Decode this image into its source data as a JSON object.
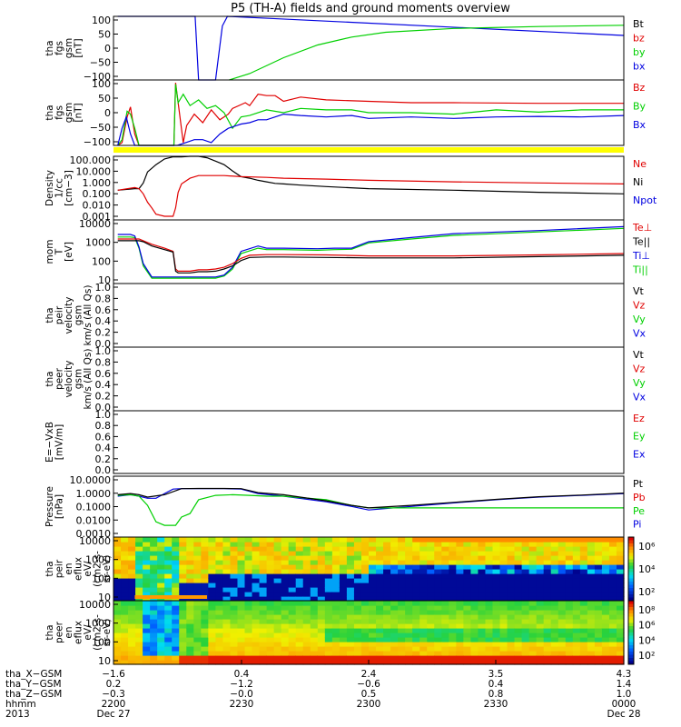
{
  "title": "P5 (TH-A) fields and ground moments overview",
  "colors": {
    "black": "#000000",
    "red": "#e00000",
    "green": "#00d000",
    "blue": "#0000e0",
    "yellow": "#ffff00"
  },
  "chart_data": [
    {
      "type": "line",
      "ylabel": [
        "tha",
        "fgs",
        "gsm",
        "[nT]"
      ],
      "ylim": [
        -100,
        100
      ],
      "yticks": [
        "100",
        "50",
        "0",
        "−50",
        "−100"
      ],
      "legend": [
        {
          "name": "Bt",
          "color": "black"
        },
        {
          "name": "bz",
          "color": "red"
        },
        {
          "name": "by",
          "color": "green"
        },
        {
          "name": "bx",
          "color": "blue"
        }
      ],
      "series": [
        {
          "name": "bx",
          "color": "blue",
          "x": [
            0.5,
            4.2,
            7.0,
            7.4,
            9.2,
            9.6,
            10.0,
            11.0,
            12.0,
            12.8,
            13.4,
            60
          ],
          "y": [
            100,
            100,
            100,
            100,
            100,
            100,
            -100,
            -100,
            -100,
            70,
            100,
            40
          ]
        },
        {
          "name": "by",
          "color": "green",
          "x": [
            13.6,
            16,
            20,
            24,
            28,
            32,
            40,
            50,
            60
          ],
          "y": [
            -100,
            -80,
            -30,
            10,
            35,
            50,
            62,
            68,
            72
          ]
        }
      ]
    },
    {
      "type": "line",
      "ylabel": [
        "tha",
        "fgs",
        "gsm",
        "[nT]"
      ],
      "ylim": [
        -120,
        110
      ],
      "yticks": [
        "100",
        "50",
        "0",
        "−50",
        "−100"
      ],
      "legend": [
        {
          "name": "Bz",
          "color": "red"
        },
        {
          "name": "By",
          "color": "green"
        },
        {
          "name": "Bx",
          "color": "blue"
        }
      ],
      "series": [
        {
          "name": "Bz",
          "color": "red",
          "x": [
            0.5,
            1.0,
            1.6,
            2.0,
            2.5,
            3.0,
            7.1,
            7.3,
            8.2,
            8.6,
            9.5,
            10.5,
            11.5,
            12.5,
            13.5,
            14.0,
            15.5,
            16,
            17,
            18,
            19,
            20,
            22,
            25,
            30,
            35,
            40,
            50,
            60
          ],
          "y": [
            -120,
            -110,
            -20,
            15,
            -80,
            -120,
            -120,
            100,
            -110,
            -50,
            -10,
            -40,
            5,
            -30,
            -10,
            10,
            30,
            20,
            60,
            55,
            55,
            35,
            50,
            40,
            35,
            30,
            30,
            28,
            28
          ]
        },
        {
          "name": "By",
          "color": "green",
          "x": [
            0.5,
            1.0,
            1.6,
            2.0,
            2.5,
            3.0,
            7.1,
            7.3,
            7.6,
            8.2,
            9.0,
            10.0,
            11.0,
            12.0,
            13.0,
            14.0,
            15,
            16,
            18,
            20,
            22,
            25,
            28,
            30,
            35,
            40,
            45,
            50,
            55,
            60
          ],
          "y": [
            -120,
            -100,
            0,
            -10,
            -60,
            -120,
            -120,
            95,
            30,
            60,
            20,
            40,
            10,
            20,
            -5,
            -60,
            -20,
            -15,
            5,
            -5,
            10,
            5,
            5,
            -5,
            -5,
            -10,
            5,
            -3,
            5,
            5
          ]
        },
        {
          "name": "Bx",
          "color": "blue",
          "x": [
            0.5,
            1.0,
            1.5,
            2.0,
            2.5,
            7.5,
            8.5,
            9.5,
            10.5,
            11.5,
            12.5,
            13.5,
            14.5,
            15,
            16,
            17,
            18,
            19,
            20,
            22,
            25,
            28,
            30,
            35,
            40,
            45,
            50,
            55,
            60
          ],
          "y": [
            -120,
            -60,
            -20,
            -80,
            -120,
            -120,
            -110,
            -100,
            -100,
            -110,
            -80,
            -60,
            -50,
            -45,
            -40,
            -30,
            -30,
            -20,
            -10,
            -15,
            -20,
            -15,
            -25,
            -20,
            -25,
            -20,
            -18,
            -20,
            -15
          ]
        }
      ],
      "flagbar": {
        "color": "yellow"
      }
    },
    {
      "type": "line",
      "ylabel": [
        "Density",
        "1/cc",
        "[cm−3]"
      ],
      "ylim": [
        0.001,
        200
      ],
      "log": true,
      "yticks": [
        "100.000",
        "10.000",
        "1.000",
        "0.100",
        "0.010",
        "0.001"
      ],
      "legend": [
        {
          "name": "Ne",
          "color": "red"
        },
        {
          "name": "Ni",
          "color": "black"
        },
        {
          "name": "Npot",
          "color": "blue"
        }
      ],
      "series": [
        {
          "name": "Ni",
          "color": "black",
          "x": [
            0.5,
            2.5,
            3.0,
            3.5,
            4,
            5,
            6,
            7,
            8,
            9,
            10,
            11,
            12,
            13,
            14,
            15,
            16,
            17,
            18,
            19,
            20,
            22,
            25,
            30,
            40,
            50,
            60
          ],
          "y": [
            0.3,
            0.4,
            0.4,
            1.2,
            10,
            40,
            120,
            180,
            180,
            200,
            200,
            150,
            80,
            40,
            12,
            4,
            3,
            2,
            1.5,
            1.1,
            1.0,
            0.8,
            0.6,
            0.4,
            0.3,
            0.2,
            0.15
          ]
        },
        {
          "name": "Ne",
          "color": "red",
          "x": [
            0.5,
            2.5,
            3.0,
            3.5,
            4,
            4.5,
            5,
            6,
            7,
            7.3,
            7.6,
            8,
            9,
            10,
            11,
            12,
            13,
            15,
            18,
            20,
            25,
            30,
            40,
            50,
            60
          ],
          "y": [
            0.3,
            0.5,
            0.4,
            0.15,
            0.03,
            0.01,
            0.003,
            0.002,
            0.002,
            0.01,
            0.2,
            1.0,
            3,
            5,
            5,
            5,
            5,
            4,
            3.5,
            3,
            2.5,
            2,
            1.5,
            1.2,
            1.0
          ]
        }
      ]
    },
    {
      "type": "line",
      "ylabel": [
        "mom",
        "T",
        "[eV]"
      ],
      "ylim": [
        3,
        12000
      ],
      "log": true,
      "yticks": [
        "10000",
        "1000",
        "100",
        "10"
      ],
      "legend": [
        {
          "name": "Te⊥",
          "color": "red"
        },
        {
          "name": "Te||",
          "color": "black"
        },
        {
          "name": "Ti⊥",
          "color": "blue"
        },
        {
          "name": "Ti||",
          "color": "green"
        }
      ],
      "series": [
        {
          "name": "Ti||",
          "color": "green",
          "x": [
            0.5,
            2.0,
            2.5,
            3.0,
            3.5,
            4.5,
            6,
            7,
            8,
            9,
            10,
            11,
            12,
            13,
            14,
            15,
            17,
            18,
            20,
            24,
            26,
            28,
            30,
            35,
            40,
            50,
            60
          ],
          "y": [
            1300,
            1300,
            1200,
            300,
            30,
            6,
            6,
            6,
            6,
            6,
            6,
            6,
            6,
            8,
            20,
            150,
            300,
            250,
            250,
            230,
            250,
            260,
            600,
            1000,
            1600,
            2500,
            4000
          ]
        },
        {
          "name": "Ti⊥",
          "color": "blue",
          "x": [
            0.5,
            2.0,
            2.5,
            3.0,
            3.5,
            4.5,
            6,
            7,
            8,
            9,
            10,
            11,
            12,
            13,
            14,
            15,
            17,
            18,
            20,
            24,
            26,
            28,
            30,
            35,
            40,
            50,
            60
          ],
          "y": [
            1800,
            1800,
            1500,
            350,
            40,
            7,
            7,
            7,
            7,
            7,
            7,
            7,
            7,
            9,
            25,
            200,
            400,
            300,
            300,
            280,
            300,
            300,
            700,
            1200,
            2000,
            3000,
            5000
          ]
        },
        {
          "name": "Te⊥",
          "color": "red",
          "x": [
            0.5,
            3.0,
            3.5,
            4.5,
            6,
            7,
            7.3,
            7.6,
            8,
            9,
            10,
            11,
            12,
            13,
            14,
            15,
            16,
            18,
            20,
            25,
            30,
            40,
            50,
            60
          ],
          "y": [
            1000,
            1000,
            800,
            500,
            300,
            200,
            20,
            15,
            15,
            15,
            18,
            18,
            20,
            25,
            40,
            80,
            120,
            130,
            130,
            125,
            110,
            110,
            125,
            150
          ]
        },
        {
          "name": "Te||",
          "color": "black",
          "x": [
            0.5,
            3.0,
            3.5,
            4.5,
            6,
            7,
            7.3,
            7.6,
            8,
            9,
            10,
            11,
            12,
            13,
            14,
            15,
            16,
            18,
            20,
            25,
            30,
            40,
            50,
            60
          ],
          "y": [
            800,
            800,
            700,
            400,
            250,
            180,
            15,
            12,
            12,
            12,
            14,
            14,
            15,
            20,
            30,
            60,
            90,
            95,
            95,
            90,
            85,
            85,
            100,
            120
          ]
        }
      ]
    },
    {
      "type": "line",
      "ylabel": [
        "tha",
        "peir",
        "velocity",
        "gsm",
        "km/s (All Qs)"
      ],
      "ylim": [
        0,
        1
      ],
      "yticks": [
        "1.0",
        "0.8",
        "0.6",
        "0.4",
        "0.2",
        "0.0"
      ],
      "legend": [
        {
          "name": "Vt",
          "color": "black"
        },
        {
          "name": "Vz",
          "color": "red"
        },
        {
          "name": "Vy",
          "color": "green"
        },
        {
          "name": "Vx",
          "color": "blue"
        }
      ],
      "series": []
    },
    {
      "type": "line",
      "ylabel": [
        "tha",
        "peer",
        "velocity",
        "gsm",
        "km/s (All Qs)"
      ],
      "ylim": [
        0,
        1
      ],
      "yticks": [
        "1.0",
        "0.8",
        "0.6",
        "0.4",
        "0.2",
        "0.0"
      ],
      "legend": [
        {
          "name": "Vt",
          "color": "black"
        },
        {
          "name": "Vz",
          "color": "red"
        },
        {
          "name": "Vy",
          "color": "green"
        },
        {
          "name": "Vx",
          "color": "blue"
        }
      ],
      "series": []
    },
    {
      "type": "line",
      "ylabel": [
        "E=−VxB",
        "[mV/m]"
      ],
      "ylim": [
        0,
        1
      ],
      "yticks": [
        "1.0",
        "0.8",
        "0.6",
        "0.4",
        "0.2",
        "0.0"
      ],
      "legend": [
        {
          "name": "Ez",
          "color": "red"
        },
        {
          "name": "Ey",
          "color": "green"
        },
        {
          "name": "Ex",
          "color": "blue"
        }
      ],
      "series": []
    },
    {
      "type": "line",
      "ylabel": [
        "Pressure",
        "[nPa]"
      ],
      "ylim": [
        0.0001,
        15
      ],
      "log": true,
      "yticks": [
        "10.0000",
        "1.0000",
        "0.1000",
        "0.0100",
        "0.0010"
      ],
      "legend": [
        {
          "name": "Pt",
          "color": "black"
        },
        {
          "name": "Pb",
          "color": "red"
        },
        {
          "name": "Pe",
          "color": "green"
        },
        {
          "name": "Pi",
          "color": "blue"
        }
      ],
      "series": [
        {
          "name": "Pi",
          "color": "blue",
          "x": [
            0.5,
            2,
            3,
            4,
            5,
            6,
            7,
            8,
            10,
            13,
            15,
            17,
            20,
            25,
            28,
            30,
            35,
            40,
            45,
            50,
            55,
            60
          ],
          "y": [
            0.3,
            0.4,
            0.3,
            0.2,
            0.2,
            0.5,
            1.2,
            1.3,
            1.3,
            1.3,
            1.2,
            0.5,
            0.3,
            0.1,
            0.04,
            0.02,
            0.04,
            0.08,
            0.15,
            0.25,
            0.35,
            0.5
          ]
        },
        {
          "name": "Pe",
          "color": "green",
          "x": [
            0.5,
            2,
            3,
            4,
            5,
            6,
            7,
            7.3,
            8,
            9,
            10,
            12,
            14,
            16,
            18,
            20,
            25,
            28,
            30,
            35,
            40,
            50,
            60
          ],
          "y": [
            0.35,
            0.4,
            0.3,
            0.05,
            0.002,
            0.001,
            0.001,
            0.001,
            0.005,
            0.01,
            0.15,
            0.35,
            0.4,
            0.35,
            0.3,
            0.3,
            0.15,
            0.05,
            0.03,
            0.03,
            0.03,
            0.03,
            0.03
          ]
        },
        {
          "name": "Pt",
          "color": "black",
          "x": [
            0.5,
            2,
            3,
            4,
            6,
            8,
            10,
            13,
            15,
            17,
            20,
            25,
            28,
            30,
            35,
            40,
            45,
            50,
            55,
            60
          ],
          "y": [
            0.4,
            0.5,
            0.4,
            0.25,
            0.4,
            1.3,
            1.35,
            1.35,
            1.3,
            0.6,
            0.4,
            0.12,
            0.05,
            0.03,
            0.05,
            0.09,
            0.16,
            0.27,
            0.37,
            0.55
          ]
        }
      ]
    },
    {
      "type": "heatmap",
      "ylabel": [
        "tha",
        "peir",
        "en",
        "eflux",
        "eV/",
        "(cm2-s-",
        "sr-eV)"
      ],
      "ylim": [
        5,
        30000
      ],
      "log": true,
      "yticks": [
        "10000",
        "1000",
        "100",
        "10"
      ],
      "colorbar": {
        "ticks": [
          "10⁶",
          "10⁴",
          "10²"
        ]
      }
    },
    {
      "type": "heatmap",
      "ylabel": [
        "tha",
        "peer",
        "en",
        "eflux",
        "eV/",
        "(cm2-s-",
        "sr-eV)"
      ],
      "ylim": [
        5,
        30000
      ],
      "log": true,
      "yticks": [
        "10000",
        "1000",
        "100",
        "10"
      ],
      "colorbar": {
        "ticks": [
          "10⁸",
          "10⁶",
          "10⁴",
          "10²"
        ]
      }
    }
  ],
  "xaxis": {
    "rows": [
      {
        "label": "tha_X−GSM",
        "values": [
          "−1.6",
          "0.4",
          "2.4",
          "3.5",
          "4.3"
        ]
      },
      {
        "label": "tha_Y−GSM",
        "values": [
          "0.2",
          "−1.2",
          "−0.6",
          "0.4",
          "1.4"
        ]
      },
      {
        "label": "tha_Z−GSM",
        "values": [
          "−0.3",
          "−0.0",
          "0.5",
          "0.8",
          "1.0"
        ]
      },
      {
        "label": "hhmm",
        "values": [
          "2200",
          "2230",
          "2300",
          "2330",
          "0000"
        ]
      },
      {
        "label": "2013",
        "values": [
          "Dec 27",
          "",
          "",
          "",
          "Dec 28"
        ]
      }
    ]
  }
}
